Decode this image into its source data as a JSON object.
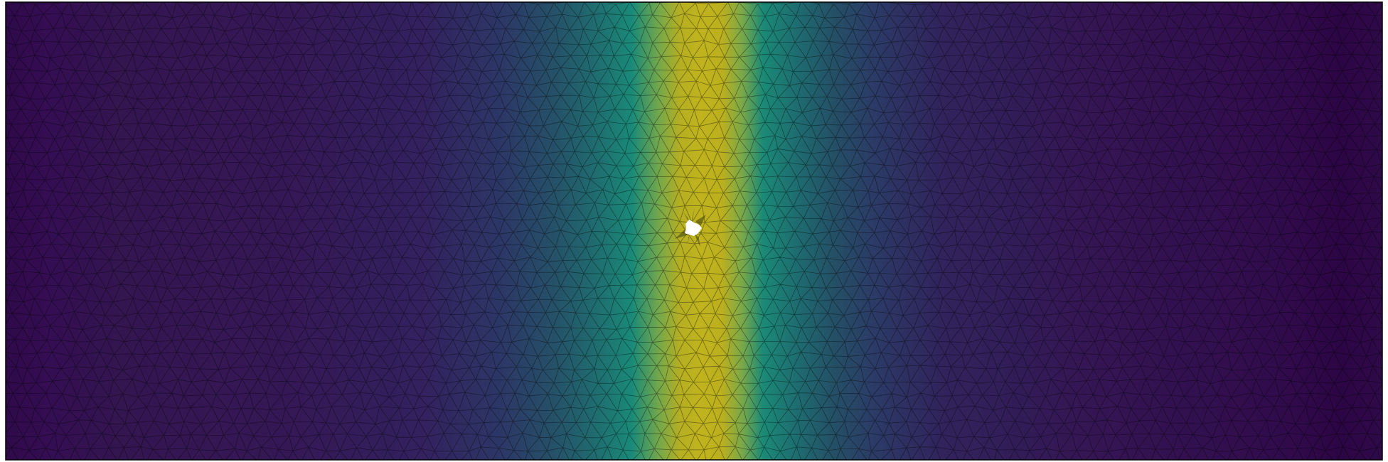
{
  "visualization": {
    "type": "triangulated-mesh-field",
    "colormap": "viridis",
    "colormap_stops": [
      "#440154",
      "#3b528b",
      "#21918c",
      "#5ec962",
      "#bddf26",
      "#fde725"
    ],
    "field_peak_color": "#bdb51f",
    "mesh_line_color": "#000000",
    "hole_fill": "#ffffff",
    "border_color": "#000000",
    "hole_present": true
  }
}
